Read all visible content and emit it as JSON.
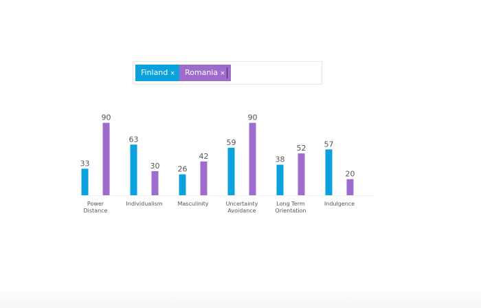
{
  "picker": {
    "chips": [
      {
        "label": "Finland",
        "remove": "×",
        "color": "#0aa1dc"
      },
      {
        "label": "Romania",
        "remove": "×",
        "color": "#9d6ccc"
      }
    ]
  },
  "chart_data": {
    "type": "bar",
    "categories": [
      [
        "Power",
        "Distance"
      ],
      [
        "Individualism"
      ],
      [
        "Masculinity"
      ],
      [
        "Uncertainty",
        "Avoidance"
      ],
      [
        "Long Term",
        "Orientation"
      ],
      [
        "Indulgence"
      ]
    ],
    "series": [
      {
        "name": "Finland",
        "color": "#0aa1dc",
        "values": [
          33,
          63,
          26,
          59,
          38,
          57
        ]
      },
      {
        "name": "Romania",
        "color": "#9d6ccc",
        "values": [
          90,
          30,
          42,
          90,
          52,
          20
        ]
      }
    ],
    "ylim": [
      0,
      100
    ],
    "grid": false,
    "data_labels": true
  }
}
